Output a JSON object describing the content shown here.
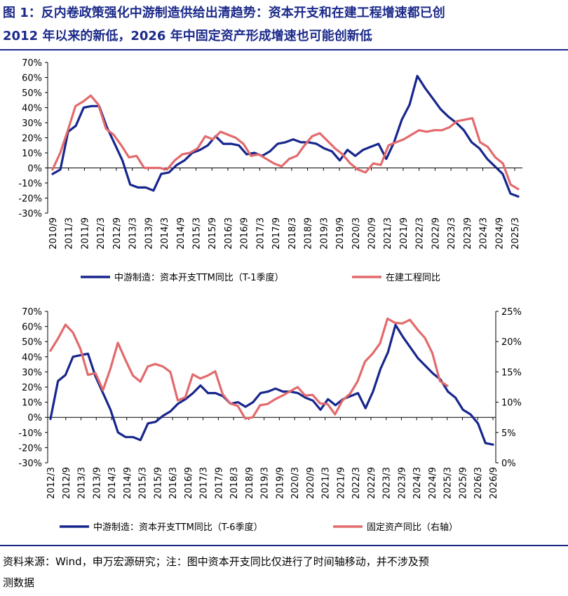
{
  "title_line1": "图 1：反内卷政策强化中游制造供给出清趋势：资本开支和在建工程增速都已创",
  "title_line2": "2012 年以来的新低，2026 年中固定资产形成增速也可能创新低",
  "source_line1": "资料来源：Wind，申万宏源研究；注：图中资本开支同比仅进行了时间轴移动，并不涉及预",
  "source_line2": "测数据",
  "colors": {
    "blue": "#17268c",
    "red": "#e26a6c",
    "axis": "#000000"
  },
  "chart_data": [
    {
      "type": "line",
      "x_ticks": [
        "2010/9",
        "2011/3",
        "2011/9",
        "2012/3",
        "2012/9",
        "2013/3",
        "2013/9",
        "2014/3",
        "2014/9",
        "2015/3",
        "2015/9",
        "2016/3",
        "2016/9",
        "2017/3",
        "2017/9",
        "2018/3",
        "2018/9",
        "2019/3",
        "2019/9",
        "2020/3",
        "2020/9",
        "2021/3",
        "2021/9",
        "2022/3",
        "2022/9",
        "2023/3",
        "2023/9",
        "2024/3",
        "2024/9",
        "2025/3"
      ],
      "y_ticks": [
        "70%",
        "60%",
        "50%",
        "40%",
        "30%",
        "20%",
        "10%",
        "0%",
        "-10%",
        "-20%",
        "-30%"
      ],
      "ylim": [
        -30,
        70
      ],
      "series": [
        {
          "name": "中游制造：资本开支TTM同比（T-1季度）",
          "color": "blue",
          "values": [
            -4,
            -1,
            24,
            28,
            40,
            41,
            41,
            27,
            16,
            5,
            -11,
            -13,
            -13,
            -15,
            -4,
            -3,
            2,
            5,
            10,
            12,
            15,
            21,
            16,
            16,
            15,
            9,
            10,
            8,
            11,
            16,
            17,
            19,
            17,
            17,
            16,
            13,
            11,
            5,
            12,
            8,
            12,
            14,
            16,
            6,
            17,
            32,
            42,
            61,
            53,
            46,
            39,
            34,
            30,
            25,
            17,
            13,
            6,
            1,
            -4,
            -17,
            -19
          ]
        },
        {
          "name": "在建工程同比",
          "color": "red",
          "values": [
            -1,
            10,
            25,
            41,
            44,
            48,
            42,
            26,
            22,
            15,
            7,
            8,
            0,
            0,
            0,
            -1,
            5,
            9,
            10,
            13,
            21,
            19,
            24,
            22,
            20,
            16,
            8,
            9,
            6,
            3,
            1,
            6,
            8,
            15,
            21,
            23,
            18,
            13,
            9,
            3,
            -1,
            -3,
            3,
            2,
            15,
            17,
            19,
            22,
            25,
            24,
            25,
            25,
            27,
            31,
            32,
            33,
            17,
            14,
            7,
            3,
            -11,
            -14
          ]
        }
      ]
    },
    {
      "type": "line",
      "x_ticks": [
        "2012/3",
        "2012/9",
        "2013/3",
        "2013/9",
        "2014/3",
        "2014/9",
        "2015/3",
        "2015/9",
        "2016/3",
        "2016/9",
        "2017/3",
        "2017/9",
        "2018/3",
        "2018/9",
        "2019/3",
        "2019/9",
        "2020/3",
        "2020/9",
        "2021/3",
        "2021/9",
        "2022/3",
        "2022/9",
        "2023/3",
        "2023/9",
        "2024/3",
        "2024/9",
        "2025/3",
        "2025/9",
        "2026/3",
        "2026/9"
      ],
      "y_ticks_left": [
        "70%",
        "60%",
        "50%",
        "40%",
        "30%",
        "20%",
        "10%",
        "0%",
        "-10%",
        "-20%",
        "-30%"
      ],
      "y_ticks_right": [
        "25%",
        "20%",
        "15%",
        "10%",
        "5%",
        "0%"
      ],
      "ylim_left": [
        -30,
        70
      ],
      "ylim_right": [
        0,
        25
      ],
      "series": [
        {
          "name": "中游制造：资本开支TTM同比（T-6季度）",
          "color": "blue",
          "axis": "left",
          "values": [
            -1,
            24,
            28,
            40,
            41,
            42,
            27,
            16,
            5,
            -10,
            -13,
            -13,
            -15,
            -4,
            -3,
            1,
            4,
            9,
            12,
            16,
            21,
            16,
            16,
            14,
            9,
            10,
            7,
            10,
            16,
            17,
            19,
            17,
            17,
            16,
            13,
            11,
            5,
            12,
            8,
            12,
            14,
            16,
            6,
            17,
            32,
            43,
            61,
            53,
            46,
            39,
            34,
            29,
            25,
            17,
            13,
            5,
            2,
            -4,
            -17,
            -18
          ]
        },
        {
          "name": "固定资产同比（右轴）",
          "color": "red",
          "axis": "right",
          "values": [
            18.5,
            20.5,
            22.8,
            21.5,
            18.8,
            14.5,
            14.8,
            12.0,
            15.5,
            19.8,
            17.0,
            14.4,
            13.4,
            15.9,
            16.3,
            15.9,
            15.0,
            10.3,
            10.8,
            14.6,
            13.9,
            14.4,
            15.1,
            11.3,
            9.8,
            9.4,
            7.3,
            7.5,
            9.5,
            9.7,
            10.5,
            11.1,
            11.8,
            12.5,
            11.1,
            11.2,
            9.8,
            9.7,
            8.0,
            10.3,
            11.4,
            13.4,
            16.7,
            18.0,
            19.7,
            23.8,
            23.1,
            23.0,
            23.6,
            22.0,
            20.6,
            18.1,
            13.5,
            12.7
          ]
        }
      ]
    }
  ]
}
